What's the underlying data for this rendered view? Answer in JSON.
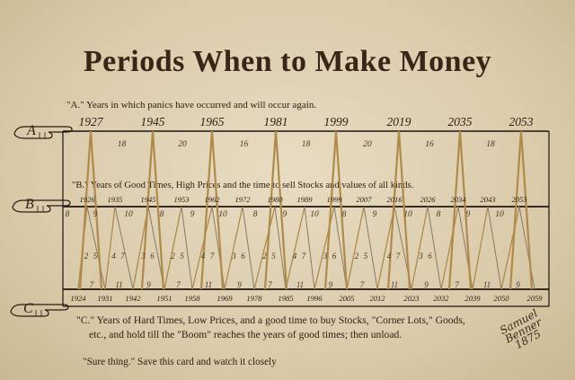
{
  "title": "Periods When to Make Money",
  "captions": {
    "a": "\"A.\" Years in which panics have occurred and will occur again.",
    "b": "\"B.\" Years of Good Times, High Prices and the time to sell Stocks and values of all kinds.",
    "c_line1": "\"C.\"  Years of Hard Times, Low Prices, and a good time to buy Stocks, \"Corner Lots,\" Goods,",
    "c_line2": "etc., and hold till the \"Boom\" reaches the years of good times; then unload.",
    "sure_thing": "\"Sure thing.\" Save this card and watch it closely"
  },
  "row_labels": {
    "a": "A",
    "b": "B",
    "c": "C"
  },
  "row_a": {
    "years": [
      "1927",
      "1945",
      "1965",
      "1981",
      "1999",
      "2019",
      "2035",
      "2053"
    ],
    "intervals": [
      "18",
      "20",
      "16",
      "18",
      "20",
      "16",
      "18"
    ]
  },
  "row_b": {
    "years": [
      "1926",
      "1935",
      "1945",
      "1953",
      "1962",
      "1972",
      "1980",
      "1989",
      "1999",
      "2007",
      "2016",
      "2026",
      "2034",
      "2043",
      "2053"
    ],
    "intervals": [
      "8",
      "9",
      "10",
      "8",
      "9",
      "10",
      "8",
      "9",
      "10",
      "8",
      "9",
      "10",
      "8",
      "9",
      "10"
    ]
  },
  "row_c": {
    "years": [
      "1924",
      "1931",
      "1942",
      "1951",
      "1958",
      "1969",
      "1978",
      "1985",
      "1996",
      "2005",
      "2012",
      "2023",
      "2032",
      "2039",
      "2050",
      "2059"
    ],
    "mid_intervals": [
      "2",
      "5",
      "4",
      "7",
      "3",
      "6",
      "2",
      "5",
      "4",
      "7",
      "3",
      "6",
      "2",
      "5",
      "4",
      "7",
      "3",
      "6",
      "2",
      "5",
      "4",
      "7",
      "3",
      "6"
    ],
    "bottom_intervals": [
      "7",
      "11",
      "9",
      "7",
      "11",
      "9",
      "7",
      "11",
      "9",
      "7",
      "11",
      "9",
      "7",
      "11",
      "9"
    ]
  },
  "signature": {
    "line1": "Samuel",
    "line2": "Benner",
    "line3": "1875"
  },
  "colors": {
    "paper": "#e3d6ba",
    "ink": "#2b1d12",
    "gold_line": "#b08a4a",
    "grid_line": "#1e1510"
  }
}
